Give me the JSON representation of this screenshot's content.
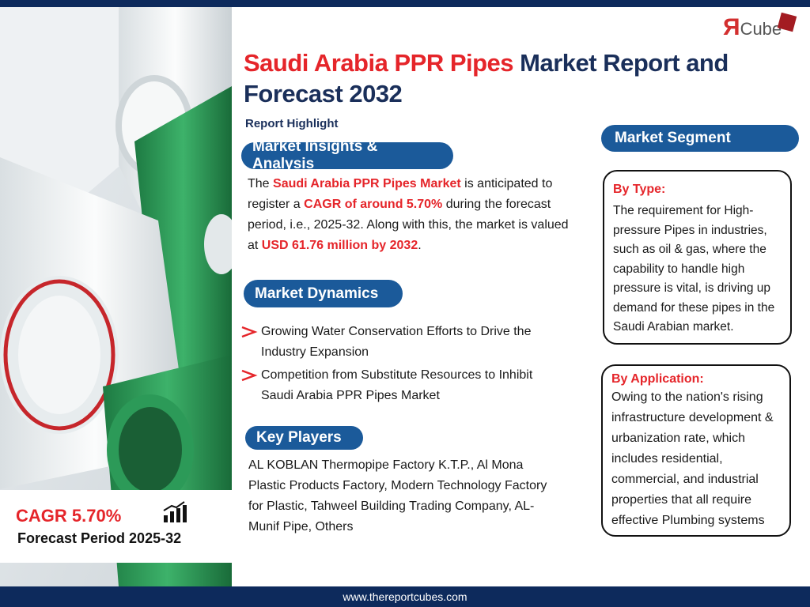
{
  "logo": {
    "mark": "Я",
    "text": "Cube"
  },
  "header": {
    "title": [
      "Saudi Arabia PPR Pipes",
      " Market Report and Forecast 2032"
    ],
    "subtitle": "Report Highlight"
  },
  "insights": {
    "heading": "Market Insights & Analysis",
    "paragraph": [
      "The ",
      "Saudi Arabia PPR Pipes Market",
      " is anticipated to register a ",
      "CAGR of around 5.70%",
      " during the forecast period, i.e., 2025-32. Along with this, the market is valued at ",
      "USD 61.76 million by 2032",
      "."
    ]
  },
  "dynamics": {
    "heading": "Market Dynamics",
    "items": [
      "Growing Water Conservation Efforts to Drive the Industry Expansion",
      "Competition from Substitute Resources to Inhibit Saudi Arabia PPR Pipes Market"
    ]
  },
  "players": {
    "heading": "Key Players",
    "text": "AL KOBLAN Thermopipe Factory K.T.P., Al Mona Plastic Products Factory, Modern Technology Factory for Plastic, Tahweel Building Trading Company, AL-Munif Pipe, Others"
  },
  "segment": {
    "heading": "Market Segment",
    "type": {
      "label": "By Type:",
      "text": "The requirement for High-pressure Pipes in industries, such as oil & gas, where the capability to handle high pressure is vital, is driving up demand for these pipes in the Saudi Arabian market."
    },
    "application": {
      "label": "By Application:",
      "text": "Owing to the nation's rising infrastructure development & urbanization rate, which includes residential, commercial, and industrial properties that all require effective Plumbing systems"
    }
  },
  "cagr": {
    "value": "CAGR 5.70%",
    "period": "Forecast Period 2025-32"
  },
  "footer": {
    "url": "www.thereportcubes.com"
  }
}
